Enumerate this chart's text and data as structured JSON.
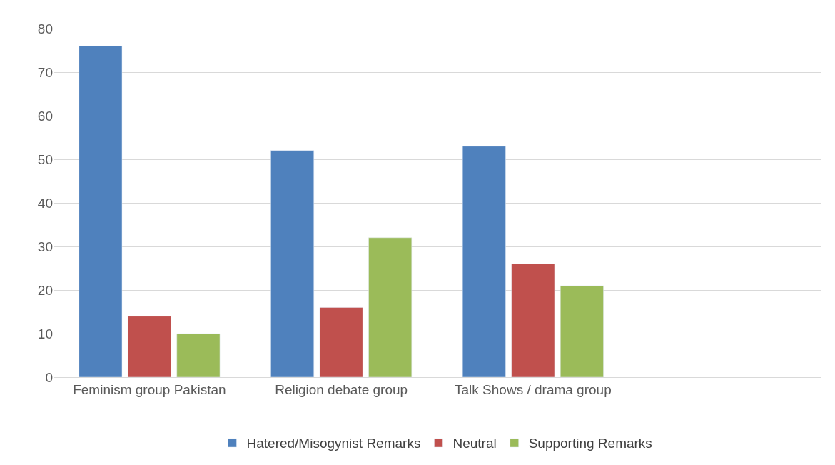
{
  "chart_data": {
    "type": "bar",
    "categories": [
      "Feminism group Pakistan",
      "Religion debate group",
      "Talk Shows / drama group",
      null
    ],
    "series": [
      {
        "name": "Hatered/Misogynist Remarks",
        "color": "#4f81bd",
        "values": [
          76,
          52,
          53,
          null
        ]
      },
      {
        "name": "Neutral",
        "color": "#c0504d",
        "values": [
          14,
          16,
          26,
          null
        ]
      },
      {
        "name": "Supporting Remarks",
        "color": "#9bbb59",
        "values": [
          10,
          32,
          21,
          null
        ]
      }
    ],
    "ylim": [
      0,
      80
    ],
    "yticks": [
      0,
      10,
      20,
      30,
      40,
      50,
      60,
      70,
      80
    ],
    "grid": "y",
    "legend": "bottom"
  }
}
